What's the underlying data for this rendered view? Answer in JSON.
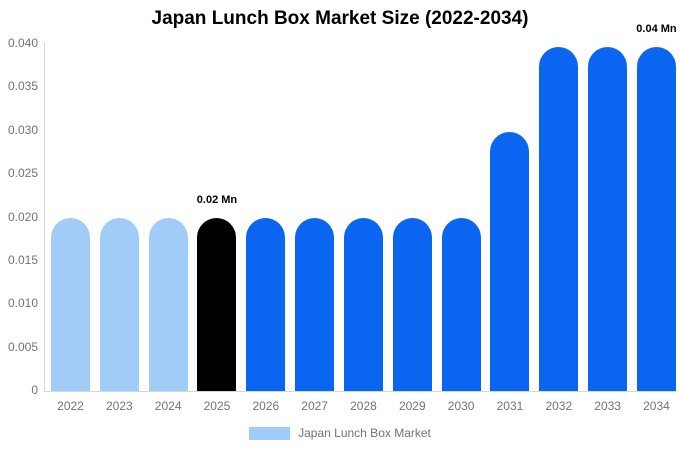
{
  "chart": {
    "title": "Japan Lunch Box Market Size (2022-2034)",
    "legend": {
      "label": "Japan Lunch Box Market",
      "swatch_color": "#a2ccf8"
    }
  },
  "chart_data": {
    "type": "bar",
    "title": "Japan Lunch Box Market Size (2022-2034)",
    "unit": "Mn",
    "categories": [
      "2022",
      "2023",
      "2024",
      "2025",
      "2026",
      "2027",
      "2028",
      "2029",
      "2030",
      "2031",
      "2032",
      "2033",
      "2034"
    ],
    "series": [
      {
        "name": "Japan Lunch Box Market",
        "values": [
          0.0199,
          0.0199,
          0.0199,
          0.0199,
          0.0199,
          0.0199,
          0.0199,
          0.0199,
          0.0199,
          0.0298,
          0.0397,
          0.0397,
          0.0397
        ]
      }
    ],
    "bar_colors": [
      "#a2ccf8",
      "#a2ccf8",
      "#a2ccf8",
      "#000000",
      "#0a66f0",
      "#0a66f0",
      "#0a66f0",
      "#0a66f0",
      "#0a66f0",
      "#0a66f0",
      "#0a66f0",
      "#0a66f0",
      "#0a66f0"
    ],
    "y_ticks": [
      {
        "label": "0.040",
        "value": 0.04
      },
      {
        "label": "0.035",
        "value": 0.035
      },
      {
        "label": "0.030",
        "value": 0.03
      },
      {
        "label": "0.025",
        "value": 0.025
      },
      {
        "label": "0.020",
        "value": 0.02
      },
      {
        "label": "0.015",
        "value": 0.015
      },
      {
        "label": "0.010",
        "value": 0.01
      },
      {
        "label": "0.005",
        "value": 0.005
      },
      {
        "label": "0",
        "value": 0
      }
    ],
    "ylim": [
      0,
      0.04
    ],
    "xlabel": "",
    "ylabel": "",
    "grid": false,
    "legend_position": "bottom",
    "annotations": [
      {
        "text": "0.02 Mn",
        "category": "2025"
      },
      {
        "text": "0.04 Mn",
        "category": "2034"
      }
    ],
    "colors": {
      "light_blue": "#a2ccf8",
      "bright_blue": "#0a66f0",
      "highlight_black": "#000000",
      "axis_line": "#d6d6d6",
      "tick_text": "#737373",
      "title_text": "#000000",
      "background": "#ffffff"
    }
  }
}
